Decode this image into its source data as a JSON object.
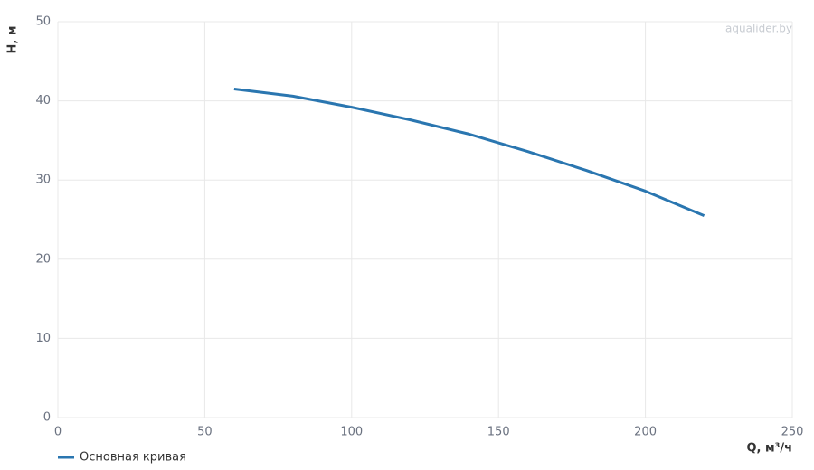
{
  "chart_data": {
    "type": "line",
    "xlabel": "Q, м³/ч",
    "ylabel": "H, м",
    "watermark": "aqualider.by",
    "x": [
      60,
      80,
      100,
      120,
      140,
      160,
      180,
      200,
      220
    ],
    "series": [
      {
        "name": "Основная кривая",
        "color": "#2a76b0",
        "values": [
          41.5,
          40.6,
          39.2,
          37.6,
          35.8,
          33.6,
          31.2,
          28.6,
          25.5
        ]
      }
    ],
    "xlim": [
      0,
      250
    ],
    "xticks": [
      0,
      50,
      100,
      150,
      200,
      250
    ],
    "ylim": [
      0,
      50
    ],
    "yticks": [
      0,
      10,
      20,
      30,
      40,
      50
    ],
    "grid": true,
    "legend": "bottom-left"
  }
}
